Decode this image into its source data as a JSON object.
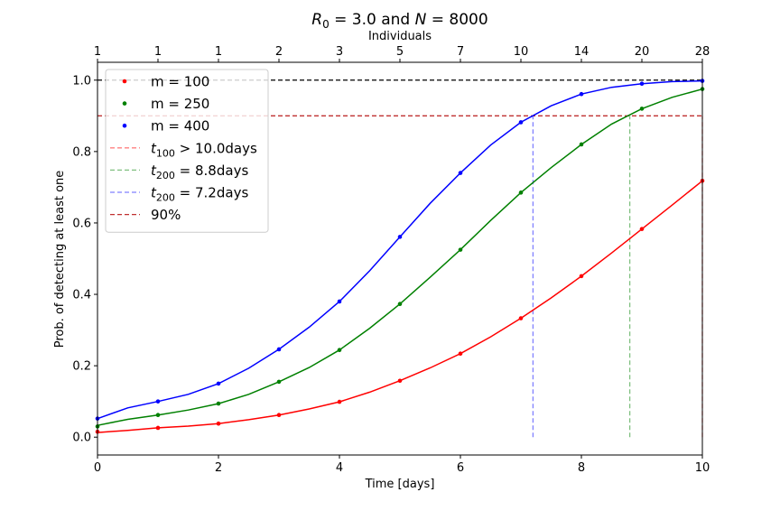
{
  "chart_data": {
    "type": "line",
    "title": "R0 = 3.0 and N = 8000",
    "title_parts": {
      "r": "R",
      "r_sub": "0",
      "mid": " = 3.0 and ",
      "n": "N",
      "tail": " = 8000"
    },
    "xlabel": "Time [days]",
    "ylabel": "Prob. of detecting at least one",
    "top_xlabel": "Individuals",
    "xlim": [
      0,
      10
    ],
    "ylim": [
      -0.05,
      1.05
    ],
    "x_ticks": [
      0,
      2,
      4,
      6,
      8,
      10
    ],
    "y_ticks": [
      0.0,
      0.2,
      0.4,
      0.6,
      0.8,
      1.0
    ],
    "top_ticks": [
      {
        "x": 0,
        "label": "1"
      },
      {
        "x": 1,
        "label": "1"
      },
      {
        "x": 2,
        "label": "1"
      },
      {
        "x": 3,
        "label": "2"
      },
      {
        "x": 4,
        "label": "3"
      },
      {
        "x": 5,
        "label": "5"
      },
      {
        "x": 6,
        "label": "7"
      },
      {
        "x": 7,
        "label": "10"
      },
      {
        "x": 8,
        "label": "14"
      },
      {
        "x": 9,
        "label": "20"
      },
      {
        "x": 10,
        "label": "28"
      }
    ],
    "grid": false,
    "legend_position": "upper-left",
    "series": [
      {
        "name": "m = 100",
        "color": "#ff0000",
        "points": {
          "x": [
            0,
            1,
            2,
            3,
            4,
            5,
            6,
            7,
            8,
            9,
            10
          ],
          "y": [
            0.015,
            0.026,
            0.038,
            0.062,
            0.099,
            0.158,
            0.234,
            0.333,
            0.451,
            0.583,
            0.718
          ]
        },
        "curve": {
          "x": [
            0,
            0.5,
            1,
            1.5,
            2,
            2.5,
            3,
            3.5,
            4,
            4.5,
            5,
            5.5,
            6,
            6.5,
            7,
            7.5,
            8,
            8.5,
            9,
            9.5,
            10
          ],
          "y": [
            0.013,
            0.019,
            0.026,
            0.031,
            0.038,
            0.049,
            0.062,
            0.079,
            0.099,
            0.126,
            0.158,
            0.194,
            0.234,
            0.281,
            0.333,
            0.39,
            0.451,
            0.516,
            0.583,
            0.65,
            0.718
          ]
        }
      },
      {
        "name": "m = 250",
        "color": "#008000",
        "points": {
          "x": [
            0,
            1,
            2,
            3,
            4,
            5,
            6,
            7,
            8,
            9,
            10
          ],
          "y": [
            0.03,
            0.062,
            0.094,
            0.155,
            0.244,
            0.373,
            0.525,
            0.685,
            0.82,
            0.92,
            0.975
          ]
        },
        "curve": {
          "x": [
            0,
            0.5,
            1,
            1.5,
            2,
            2.5,
            3,
            3.5,
            4,
            4.5,
            5,
            5.5,
            6,
            6.5,
            7,
            7.5,
            8,
            8.5,
            9,
            9.5,
            10
          ],
          "y": [
            0.033,
            0.05,
            0.062,
            0.076,
            0.094,
            0.12,
            0.155,
            0.195,
            0.244,
            0.305,
            0.373,
            0.448,
            0.525,
            0.607,
            0.685,
            0.755,
            0.82,
            0.877,
            0.92,
            0.952,
            0.975
          ]
        }
      },
      {
        "name": "m = 400",
        "color": "#0000ff",
        "points": {
          "x": [
            0,
            1,
            2,
            3,
            4,
            5,
            6,
            7,
            8,
            9,
            10
          ],
          "y": [
            0.052,
            0.1,
            0.15,
            0.246,
            0.38,
            0.561,
            0.74,
            0.882,
            0.961,
            0.99,
            0.998
          ]
        },
        "curve": {
          "x": [
            0,
            0.5,
            1,
            1.5,
            2,
            2.5,
            3,
            3.5,
            4,
            4.5,
            5,
            5.5,
            6,
            6.5,
            7,
            7.5,
            8,
            8.5,
            9,
            9.5,
            10
          ],
          "y": [
            0.052,
            0.082,
            0.1,
            0.12,
            0.15,
            0.193,
            0.246,
            0.308,
            0.38,
            0.466,
            0.561,
            0.655,
            0.74,
            0.818,
            0.882,
            0.928,
            0.961,
            0.98,
            0.99,
            0.996,
            0.998
          ]
        }
      }
    ],
    "reference_lines": [
      {
        "name": "t100 > 10.0days",
        "legend": {
          "t": "t",
          "sub": "100",
          "text": " > 10.0days"
        },
        "color": "#ff8080",
        "x": 10.0,
        "y_to": 0.9
      },
      {
        "name": "t200 = 8.8days",
        "legend": {
          "t": "t",
          "sub": "200",
          "text": " = 8.8days"
        },
        "color": "#80c080",
        "x": 8.8,
        "y_to": 0.9
      },
      {
        "name": "t200 = 7.2days",
        "legend": {
          "t": "t",
          "sub": "200",
          "text": " = 7.2days"
        },
        "color": "#8080ff",
        "x": 7.2,
        "y_to": 0.9
      },
      {
        "name": "90%",
        "legend": {
          "t": "",
          "sub": "",
          "text": "90%"
        },
        "color": "#c03030",
        "y": 0.9
      }
    ],
    "horizontal_line_black": {
      "y": 1.0,
      "color": "#000000"
    }
  }
}
